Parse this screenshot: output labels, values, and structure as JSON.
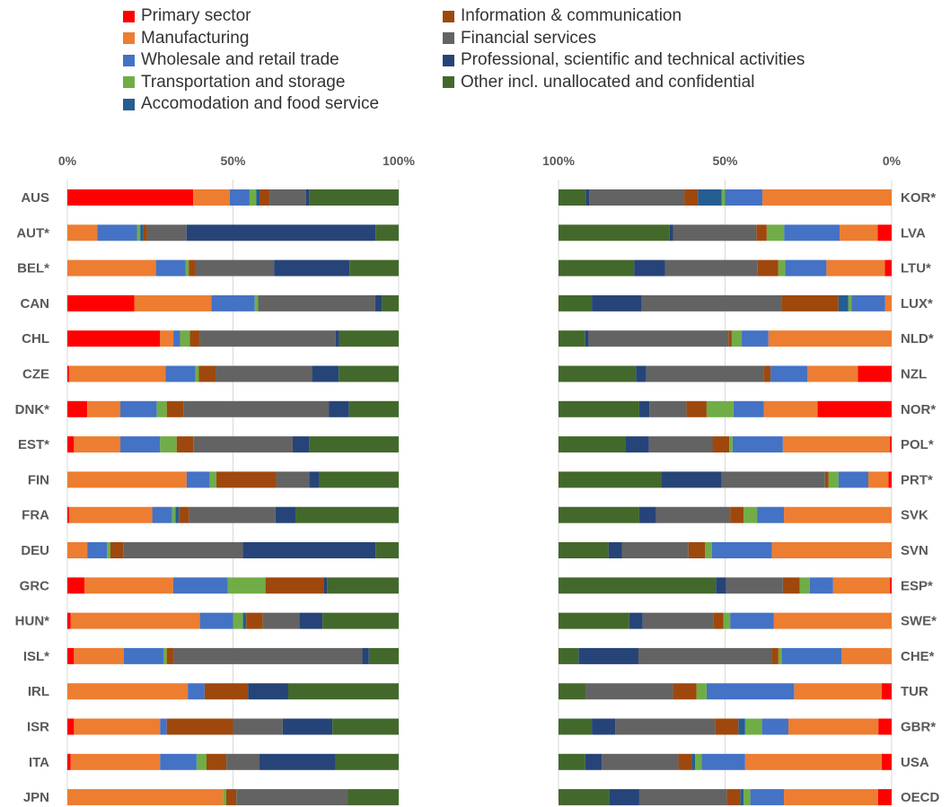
{
  "colors": {
    "primary": "#FF0000",
    "manufacturing": "#ED7D31",
    "wholesale": "#4472C4",
    "transport": "#70AD47",
    "accommodation": "#255E91",
    "information": "#9E480E",
    "financial": "#636363",
    "professional": "#264478",
    "other": "#43682B"
  },
  "legend": {
    "left": [
      {
        "label": "Primary sector",
        "color_key": "primary"
      },
      {
        "label": "Manufacturing",
        "color_key": "manufacturing"
      },
      {
        "label": "Wholesale and retail trade",
        "color_key": "wholesale"
      },
      {
        "label": "Transportation and storage",
        "color_key": "transport"
      },
      {
        "label": "Accomodation and food service",
        "color_key": "accommodation"
      }
    ],
    "right": [
      {
        "label": "Information & communication",
        "color_key": "information"
      },
      {
        "label": "Financial services",
        "color_key": "financial"
      },
      {
        "label": "Professional, scientific and technical activities",
        "color_key": "professional"
      },
      {
        "label": "Other incl. unallocated and confidential",
        "color_key": "other"
      }
    ]
  },
  "chart_data": [
    {
      "type": "bar",
      "orientation": "horizontal",
      "stacked": "percent",
      "xlim": [
        0,
        100
      ],
      "x_ticks": [
        "0%",
        "50%",
        "100%"
      ],
      "categories": [
        "AUS",
        "AUT*",
        "BEL*",
        "CAN",
        "CHL",
        "CZE",
        "DNK*",
        "EST*",
        "FIN",
        "FRA",
        "DEU",
        "GRC",
        "HUN*",
        "ISL*",
        "IRL",
        "ISR",
        "ITA",
        "JPN"
      ],
      "series": [
        {
          "name": "Primary sector",
          "color_key": "primary",
          "values": [
            38,
            0,
            0,
            20,
            28,
            0.5,
            6,
            2,
            0,
            0.5,
            0,
            5,
            1,
            2,
            0,
            2,
            1,
            0
          ]
        },
        {
          "name": "Manufacturing",
          "color_key": "manufacturing",
          "values": [
            11,
            9,
            27,
            23,
            4,
            29,
            10,
            14,
            36,
            25,
            6,
            26,
            39,
            15,
            36,
            26,
            27,
            46
          ]
        },
        {
          "name": "Wholesale and retail trade",
          "color_key": "wholesale",
          "values": [
            6,
            12,
            9,
            13,
            2,
            9,
            11,
            12,
            7,
            6,
            6,
            16,
            10,
            12,
            5,
            2,
            11,
            0
          ]
        },
        {
          "name": "Transportation and storage",
          "color_key": "transport",
          "values": [
            2,
            1,
            1,
            1,
            3,
            1,
            3,
            5,
            2,
            1,
            1,
            11,
            3,
            1,
            0,
            0,
            3,
            1
          ]
        },
        {
          "name": "Accomodation and food service",
          "color_key": "accommodation",
          "values": [
            1,
            1,
            0,
            0,
            0,
            0,
            0,
            0,
            0,
            1,
            0,
            0,
            1,
            0,
            0,
            0,
            0,
            0
          ]
        },
        {
          "name": "Information & communication",
          "color_key": "information",
          "values": [
            3,
            1,
            2,
            0,
            3,
            5,
            5,
            5,
            18,
            3,
            4,
            17,
            5,
            2,
            13,
            20,
            6,
            3
          ]
        },
        {
          "name": "Financial services",
          "color_key": "financial",
          "values": [
            11,
            12,
            24,
            35,
            41,
            29,
            44,
            30,
            10,
            26,
            36,
            0,
            11,
            57,
            0,
            15,
            10,
            33
          ]
        },
        {
          "name": "Professional, scientific and technical activities",
          "color_key": "professional",
          "values": [
            1,
            57,
            23,
            2,
            1,
            8,
            6,
            5,
            3,
            6,
            40,
            1,
            7,
            2,
            12,
            15,
            23,
            0
          ]
        },
        {
          "name": "Other incl. unallocated and confidential",
          "color_key": "other",
          "values": [
            27,
            7,
            15,
            5,
            18,
            18,
            15,
            27,
            24,
            31,
            7,
            21,
            23,
            9,
            33,
            20,
            19,
            15
          ]
        }
      ]
    },
    {
      "type": "bar",
      "orientation": "horizontal",
      "stacked": "percent",
      "x_reversed": true,
      "xlim": [
        0,
        100
      ],
      "x_ticks": [
        "100%",
        "50%",
        "0%"
      ],
      "categories": [
        "KOR*",
        "LVA",
        "LTU*",
        "LUX*",
        "NLD*",
        "NZL",
        "NOR*",
        "POL*",
        "PRT*",
        "SVK",
        "SVN",
        "ESP*",
        "SWE*",
        "CHE*",
        "TUR",
        "GBR*",
        "USA",
        "OECD"
      ],
      "series": [
        {
          "name": "Primary sector",
          "color_key": "primary",
          "values": [
            0,
            4,
            2,
            0,
            0,
            10,
            22,
            0.5,
            1,
            0,
            0,
            0.5,
            0,
            0,
            3,
            4,
            3,
            4
          ]
        },
        {
          "name": "Manufacturing",
          "color_key": "manufacturing",
          "values": [
            38,
            11,
            17,
            2,
            37,
            15,
            16,
            32,
            6,
            32,
            36,
            17,
            35,
            15,
            26,
            27,
            41,
            28
          ]
        },
        {
          "name": "Wholesale and retail trade",
          "color_key": "wholesale",
          "values": [
            11,
            16,
            12,
            10,
            8,
            11,
            9,
            15,
            9,
            8,
            18,
            7,
            13,
            18,
            26,
            8,
            13,
            10
          ]
        },
        {
          "name": "Transportation and storage",
          "color_key": "transport",
          "values": [
            1,
            5,
            2,
            1,
            3,
            0,
            8,
            1,
            3,
            4,
            2,
            3,
            2,
            1,
            3,
            5,
            2,
            2
          ]
        },
        {
          "name": "Accomodation and food service",
          "color_key": "accommodation",
          "values": [
            7,
            0,
            0,
            3,
            0,
            0,
            0,
            0,
            0,
            0,
            0,
            0,
            0,
            0,
            0,
            2,
            1,
            1
          ]
        },
        {
          "name": "Information & communication",
          "color_key": "information",
          "values": [
            4,
            3,
            6,
            17,
            1,
            2,
            6,
            5,
            1,
            4,
            5,
            5,
            3,
            2,
            7,
            7,
            4,
            4
          ]
        },
        {
          "name": "Financial services",
          "color_key": "financial",
          "values": [
            28,
            24,
            27,
            42,
            42,
            35,
            11,
            19,
            31,
            22,
            20,
            17,
            21,
            40,
            26,
            30,
            23,
            26
          ]
        },
        {
          "name": "Professional, scientific and technical activities",
          "color_key": "professional",
          "values": [
            1,
            1,
            9,
            15,
            1,
            3,
            3,
            7,
            18,
            5,
            4,
            3,
            4,
            18,
            0,
            7,
            5,
            9
          ]
        },
        {
          "name": "Other incl. unallocated and confidential",
          "color_key": "other",
          "values": [
            8,
            32,
            22,
            10,
            8,
            23,
            24,
            20,
            31,
            24,
            15,
            47,
            21,
            6,
            8,
            10,
            8,
            15
          ]
        }
      ]
    }
  ]
}
